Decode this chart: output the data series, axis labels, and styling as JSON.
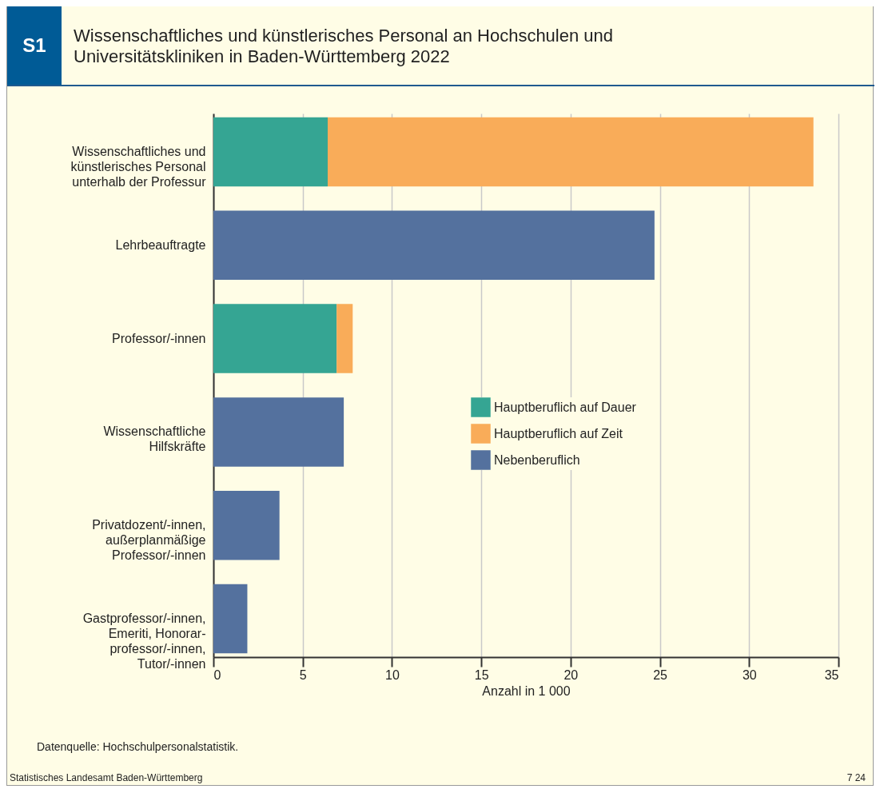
{
  "chart_data": {
    "type": "bar",
    "orientation": "horizontal",
    "stacked": true,
    "title": "Wissenschaftliches und künstlerisches Personal an Hochschulen und Universitätskliniken in Baden-Württemberg 2022",
    "xlabel": "Anzahl in 1 000",
    "categories": [
      "Wissenschaftliches und künstlerisches Personal unterhalb der Professur",
      "Lehrbeauftragte",
      "Professor/-innen",
      "Wissenschaftliche Hilfskräfte",
      "Privatdozent/-innen, außerplanmäßige Professor/-innen",
      "Gastprofessor/-innen, Emeriti, Honorar-professor/-innen, Tutor/-innen"
    ],
    "series": [
      {
        "name": "Hauptberuflich auf Dauer",
        "color": "#35a593",
        "values": [
          6.4,
          null,
          6.9,
          null,
          null,
          null
        ]
      },
      {
        "name": "Hauptberuflich auf Zeit",
        "color": "#f9ac59",
        "values": [
          27.2,
          null,
          0.9,
          null,
          null,
          null
        ]
      },
      {
        "name": "Nebenberuflich",
        "color": "#54719e",
        "values": [
          null,
          24.7,
          null,
          7.3,
          3.7,
          1.9
        ]
      }
    ],
    "xlim": [
      0,
      35
    ],
    "xticks": [
      0,
      5,
      10,
      15,
      20,
      25,
      30,
      35
    ],
    "grid": "x",
    "legend": "right",
    "annotations": [
      "S1",
      "Datenquelle: Hochschulpersonalstatistik.",
      "Statistisches Landesamt Baden-Württemberg",
      "7 24"
    ]
  }
}
